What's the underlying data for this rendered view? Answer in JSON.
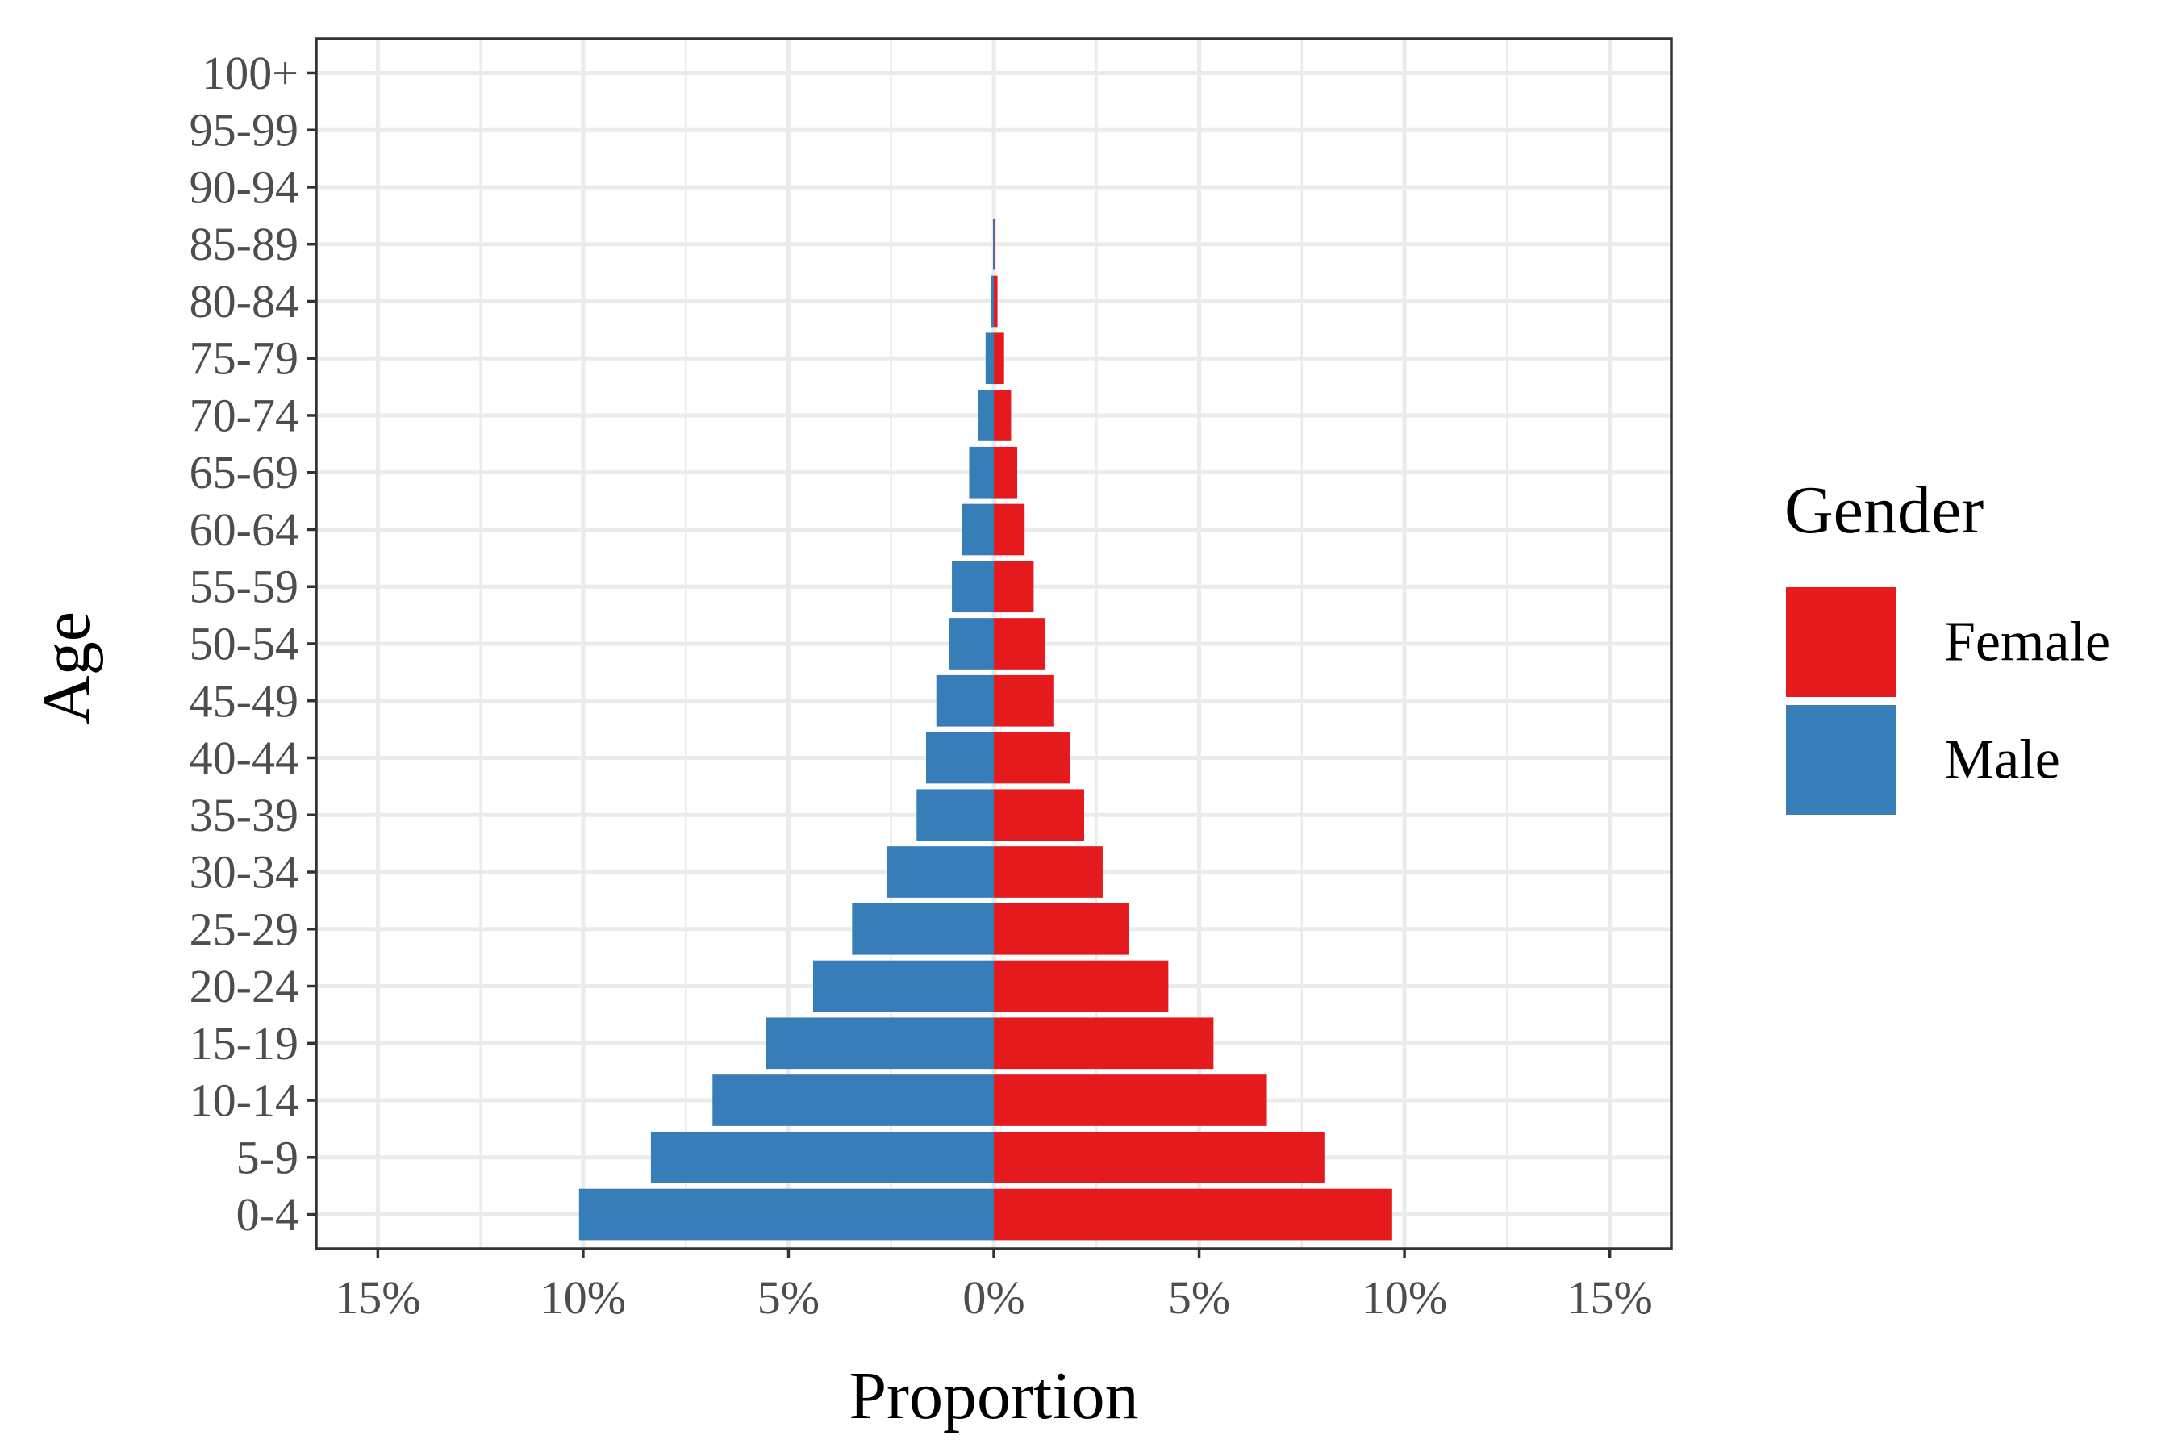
{
  "chart_data": {
    "type": "bar",
    "orientation": "horizontal",
    "layout": "population-pyramid",
    "xlabel": "Proportion",
    "ylabel": "Age",
    "xlim": [
      -16.5,
      16.5
    ],
    "x_ticks": [
      -15,
      -10,
      -5,
      0,
      5,
      10,
      15
    ],
    "x_tick_labels": [
      "15%",
      "10%",
      "5%",
      "0%",
      "5%",
      "10%",
      "15%"
    ],
    "grid": true,
    "categories": [
      "0-4",
      "5-9",
      "10-14",
      "15-19",
      "20-24",
      "25-29",
      "30-34",
      "35-39",
      "40-44",
      "45-49",
      "50-54",
      "55-59",
      "60-64",
      "65-69",
      "70-74",
      "75-79",
      "80-84",
      "85-89",
      "90-94",
      "95-99",
      "100+"
    ],
    "series": [
      {
        "name": "Female",
        "color": "#e41a1c",
        "side": "right",
        "values": [
          9.7,
          8.05,
          6.65,
          5.35,
          4.25,
          3.3,
          2.65,
          2.2,
          1.85,
          1.45,
          1.25,
          0.97,
          0.75,
          0.57,
          0.42,
          0.25,
          0.09,
          0.04,
          0,
          0,
          0
        ]
      },
      {
        "name": "Male",
        "color": "#377eb8",
        "side": "left",
        "values": [
          10.1,
          8.35,
          6.85,
          5.55,
          4.4,
          3.45,
          2.6,
          1.88,
          1.65,
          1.4,
          1.1,
          1.02,
          0.77,
          0.6,
          0.39,
          0.2,
          0.06,
          0.02,
          0,
          0,
          0
        ]
      }
    ],
    "legend": {
      "title": "Gender",
      "position": "right",
      "items": [
        {
          "label": "Female",
          "color": "#e41a1c"
        },
        {
          "label": "Male",
          "color": "#377eb8"
        }
      ]
    }
  }
}
